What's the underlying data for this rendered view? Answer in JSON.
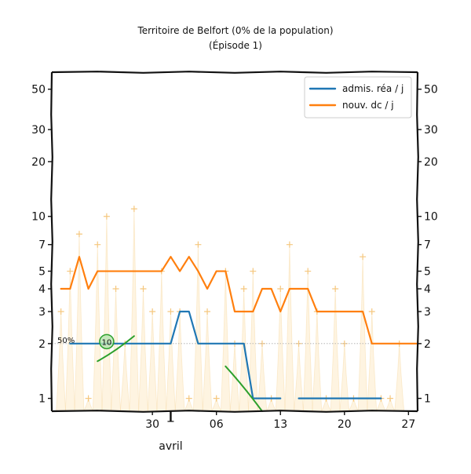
{
  "chart_data": {
    "type": "line",
    "title": "Territoire de Belfort (0% de la population)",
    "subtitle": "(Épisode 1)",
    "y_scale": "log",
    "ylim": [
      0.85,
      62
    ],
    "xlim": [
      "2020-03-19",
      "2020-04-28"
    ],
    "y_ticks": [
      1,
      2,
      3,
      4,
      5,
      7,
      10,
      20,
      30,
      50
    ],
    "y_tick_labels": [
      "1",
      "2",
      "3",
      "4",
      "5",
      "7",
      "10",
      "20",
      "30",
      "50"
    ],
    "x_ticks": [
      "2020-03-30",
      "2020-04-06",
      "2020-04-13",
      "2020-04-20",
      "2020-04-27"
    ],
    "x_tick_labels": [
      "30",
      "06",
      "13",
      "20",
      "27"
    ],
    "x_month_label": "avril",
    "month_boundary": "2020-04-01",
    "legend_position": "top-right",
    "series": [
      {
        "name": "admis. réa / j",
        "color": "#1f77b4",
        "points": [
          [
            "2020-03-21",
            2.0
          ],
          [
            "2020-03-22",
            2.0
          ],
          [
            "2020-03-23",
            2.0
          ],
          [
            "2020-03-24",
            2.0
          ],
          [
            "2020-03-25",
            2.0
          ],
          [
            "2020-03-26",
            2.0
          ],
          [
            "2020-03-27",
            2.0
          ],
          [
            "2020-03-28",
            2.0
          ],
          [
            "2020-03-29",
            2.0
          ],
          [
            "2020-03-30",
            2.0
          ],
          [
            "2020-03-31",
            2.0
          ],
          [
            "2020-04-01",
            2.0
          ],
          [
            "2020-04-02",
            3.0
          ],
          [
            "2020-04-03",
            3.0
          ],
          [
            "2020-04-04",
            2.0
          ],
          [
            "2020-04-05",
            2.0
          ],
          [
            "2020-04-06",
            2.0
          ],
          [
            "2020-04-07",
            2.0
          ],
          [
            "2020-04-08",
            2.0
          ],
          [
            "2020-04-09",
            2.0
          ],
          [
            "2020-04-10",
            1.0
          ],
          [
            "2020-04-11",
            1.0
          ],
          [
            "2020-04-12",
            1.0
          ],
          [
            "2020-04-13",
            1.0
          ],
          [
            "2020-04-15",
            1.0
          ],
          [
            "2020-04-16",
            1.0
          ],
          [
            "2020-04-17",
            1.0
          ],
          [
            "2020-04-18",
            1.0
          ],
          [
            "2020-04-19",
            1.0
          ],
          [
            "2020-04-20",
            1.0
          ],
          [
            "2020-04-21",
            1.0
          ],
          [
            "2020-04-22",
            1.0
          ],
          [
            "2020-04-23",
            1.0
          ],
          [
            "2020-04-24",
            1.0
          ]
        ]
      },
      {
        "name": "nouv. dc / j",
        "color": "#ff7f0e",
        "points": [
          [
            "2020-03-20",
            4.0
          ],
          [
            "2020-03-21",
            4.0
          ],
          [
            "2020-03-22",
            6.0
          ],
          [
            "2020-03-23",
            4.0
          ],
          [
            "2020-03-24",
            5.0
          ],
          [
            "2020-03-25",
            5.0
          ],
          [
            "2020-03-26",
            5.0
          ],
          [
            "2020-03-27",
            5.0
          ],
          [
            "2020-03-28",
            5.0
          ],
          [
            "2020-03-29",
            5.0
          ],
          [
            "2020-03-30",
            5.0
          ],
          [
            "2020-03-31",
            5.0
          ],
          [
            "2020-04-01",
            6.0
          ],
          [
            "2020-04-02",
            5.0
          ],
          [
            "2020-04-03",
            6.0
          ],
          [
            "2020-04-04",
            5.0
          ],
          [
            "2020-04-05",
            4.0
          ],
          [
            "2020-04-06",
            5.0
          ],
          [
            "2020-04-07",
            5.0
          ],
          [
            "2020-04-08",
            3.0
          ],
          [
            "2020-04-09",
            3.0
          ],
          [
            "2020-04-10",
            3.0
          ],
          [
            "2020-04-11",
            4.0
          ],
          [
            "2020-04-12",
            4.0
          ],
          [
            "2020-04-13",
            3.0
          ],
          [
            "2020-04-14",
            4.0
          ],
          [
            "2020-04-15",
            4.0
          ],
          [
            "2020-04-16",
            4.0
          ],
          [
            "2020-04-17",
            3.0
          ],
          [
            "2020-04-18",
            3.0
          ],
          [
            "2020-04-19",
            3.0
          ],
          [
            "2020-04-20",
            3.0
          ],
          [
            "2020-04-21",
            3.0
          ],
          [
            "2020-04-22",
            3.0
          ],
          [
            "2020-04-23",
            2.0
          ],
          [
            "2020-04-24",
            2.0
          ],
          [
            "2020-04-25",
            2.0
          ],
          [
            "2020-04-26",
            2.0
          ],
          [
            "2020-04-27",
            2.0
          ],
          [
            "2020-04-28",
            2.0
          ]
        ]
      }
    ],
    "daily_values": [
      [
        "2020-03-20",
        3
      ],
      [
        "2020-03-21",
        5
      ],
      [
        "2020-03-22",
        8
      ],
      [
        "2020-03-23",
        1
      ],
      [
        "2020-03-24",
        7
      ],
      [
        "2020-03-25",
        10
      ],
      [
        "2020-03-26",
        4
      ],
      [
        "2020-03-27",
        2
      ],
      [
        "2020-03-28",
        11
      ],
      [
        "2020-03-29",
        4
      ],
      [
        "2020-03-30",
        3
      ],
      [
        "2020-03-31",
        5
      ],
      [
        "2020-04-01",
        3
      ],
      [
        "2020-04-02",
        3
      ],
      [
        "2020-04-03",
        1
      ],
      [
        "2020-04-04",
        7
      ],
      [
        "2020-04-05",
        3
      ],
      [
        "2020-04-06",
        1
      ],
      [
        "2020-04-07",
        5
      ],
      [
        "2020-04-08",
        2
      ],
      [
        "2020-04-09",
        4
      ],
      [
        "2020-04-10",
        5
      ],
      [
        "2020-04-11",
        2
      ],
      [
        "2020-04-12",
        1
      ],
      [
        "2020-04-13",
        4
      ],
      [
        "2020-04-14",
        7
      ],
      [
        "2020-04-15",
        2
      ],
      [
        "2020-04-16",
        5
      ],
      [
        "2020-04-17",
        3
      ],
      [
        "2020-04-18",
        1
      ],
      [
        "2020-04-19",
        4
      ],
      [
        "2020-04-20",
        2
      ],
      [
        "2020-04-21",
        1
      ],
      [
        "2020-04-22",
        6
      ],
      [
        "2020-04-23",
        3
      ],
      [
        "2020-04-24",
        1
      ],
      [
        "2020-04-25",
        1
      ],
      [
        "2020-04-26",
        2
      ]
    ],
    "trend_lines": [
      {
        "color": "#2ca02c",
        "points": [
          [
            "2020-03-24",
            1.6
          ],
          [
            "2020-03-28",
            2.2
          ]
        ]
      },
      {
        "color": "#2ca02c",
        "points": [
          [
            "2020-04-07",
            1.5
          ],
          [
            "2020-04-11",
            0.85
          ]
        ]
      }
    ],
    "reference_line": {
      "value": 2.0,
      "label": "50%"
    },
    "badge": {
      "label": "10",
      "date": "2020-03-25",
      "value": 2.05,
      "color": "#2ca02c"
    }
  }
}
